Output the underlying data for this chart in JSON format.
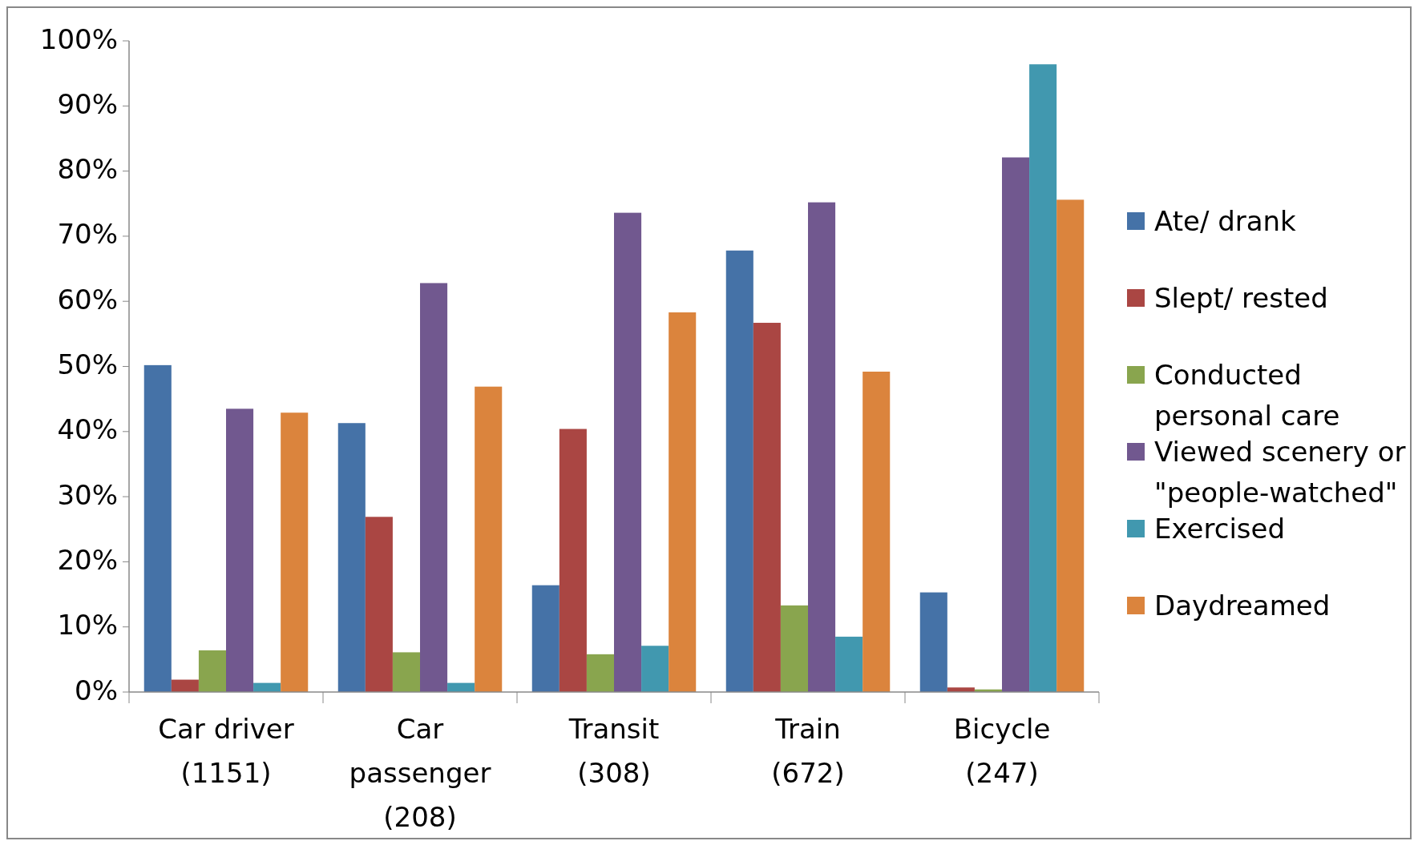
{
  "chart_data": {
    "type": "bar",
    "categories": [
      "Car driver (1151)",
      "Car passenger (208)",
      "Transit (308)",
      "Train (672)",
      "Bicycle (247)"
    ],
    "series": [
      {
        "name": "Ate/ drank",
        "color": "#4572a7",
        "values": [
          50.2,
          41.3,
          16.4,
          67.8,
          15.3
        ]
      },
      {
        "name": "Slept/ rested",
        "color": "#aa4643",
        "values": [
          1.9,
          26.9,
          40.4,
          56.7,
          0.7
        ]
      },
      {
        "name": "Conducted personal care",
        "color": "#89a54e",
        "values": [
          6.4,
          6.1,
          5.8,
          13.3,
          0.4
        ]
      },
      {
        "name": "Viewed scenery or \"people-watched\"",
        "color": "#71588f",
        "values": [
          43.5,
          62.8,
          73.6,
          75.2,
          82.1
        ]
      },
      {
        "name": "Exercised",
        "color": "#4198af",
        "values": [
          1.4,
          1.4,
          7.1,
          8.5,
          96.4
        ]
      },
      {
        "name": "Daydreamed",
        "color": "#db843d",
        "values": [
          42.9,
          46.9,
          58.3,
          49.2,
          75.6
        ]
      }
    ],
    "ylim": [
      0,
      100
    ],
    "yticks": [
      {
        "value": 0,
        "label": "0%"
      },
      {
        "value": 10,
        "label": "10%"
      },
      {
        "value": 20,
        "label": "20%"
      },
      {
        "value": 30,
        "label": "30%"
      },
      {
        "value": 40,
        "label": "40%"
      },
      {
        "value": 50,
        "label": "50%"
      },
      {
        "value": 60,
        "label": "60%"
      },
      {
        "value": 70,
        "label": "70%"
      },
      {
        "value": 80,
        "label": "80%"
      },
      {
        "value": 90,
        "label": "90%"
      },
      {
        "value": 100,
        "label": "100%"
      }
    ],
    "grid": false,
    "legend": "right"
  }
}
